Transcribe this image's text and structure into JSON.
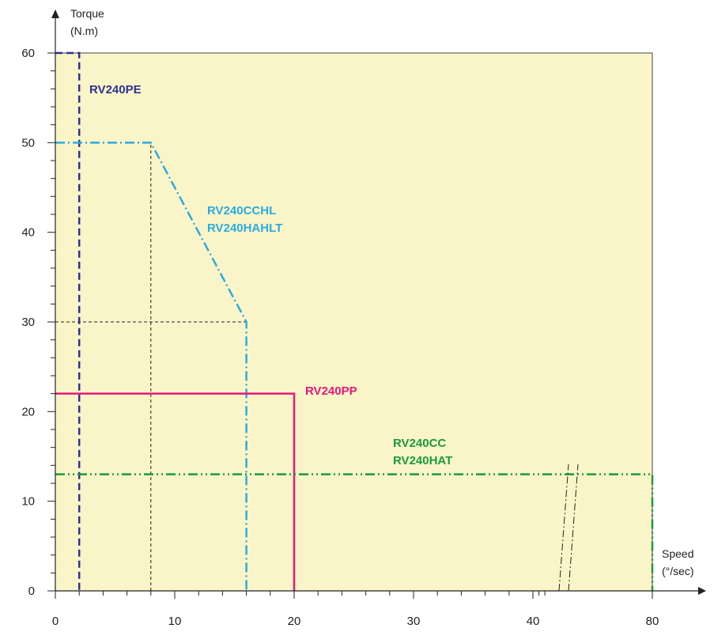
{
  "chart_data": {
    "type": "line",
    "y_axis": {
      "title_line1": "Torque",
      "title_line2": "(N.m)",
      "range": [
        0,
        60
      ],
      "ticks": [
        "0",
        "10",
        "20",
        "30",
        "40",
        "50",
        "60"
      ]
    },
    "x_axis": {
      "title_line1": "Speed",
      "title_line2": "(°/sec)",
      "ticks": [
        "0",
        "10",
        "20",
        "30",
        "40",
        "80"
      ],
      "tick_values": [
        0,
        10,
        20,
        30,
        40,
        80
      ],
      "axis_break_near": 43
    },
    "grid": false,
    "plot_background": "#faf5c8",
    "series": [
      {
        "name": "RV240PE",
        "label_lines": [
          "RV240PE"
        ],
        "color": "#2e3192",
        "x": [
          0,
          2,
          2
        ],
        "y": [
          60,
          60,
          0
        ]
      },
      {
        "name": "RV240CCHL / RV240HAHLT",
        "label_lines": [
          "RV240CCHL",
          "RV240HAHLT"
        ],
        "color": "#29abe2",
        "x": [
          0,
          8,
          16,
          16
        ],
        "y": [
          50,
          50,
          30,
          0
        ]
      },
      {
        "name": "RV240PP",
        "label_lines": [
          "RV240PP"
        ],
        "color": "#e6177a",
        "x": [
          0,
          20,
          20
        ],
        "y": [
          22,
          22,
          0
        ]
      },
      {
        "name": "RV240CC / RV240HAT",
        "label_lines": [
          "RV240CC",
          "RV240HAT"
        ],
        "color": "#1a9a3c",
        "x": [
          0,
          80,
          80
        ],
        "y": [
          13,
          13,
          0
        ]
      }
    ],
    "reference_lines": [
      {
        "x": [
          8,
          8
        ],
        "y": [
          0,
          50
        ]
      },
      {
        "x": [
          0,
          16
        ],
        "y": [
          30,
          30
        ]
      }
    ]
  }
}
